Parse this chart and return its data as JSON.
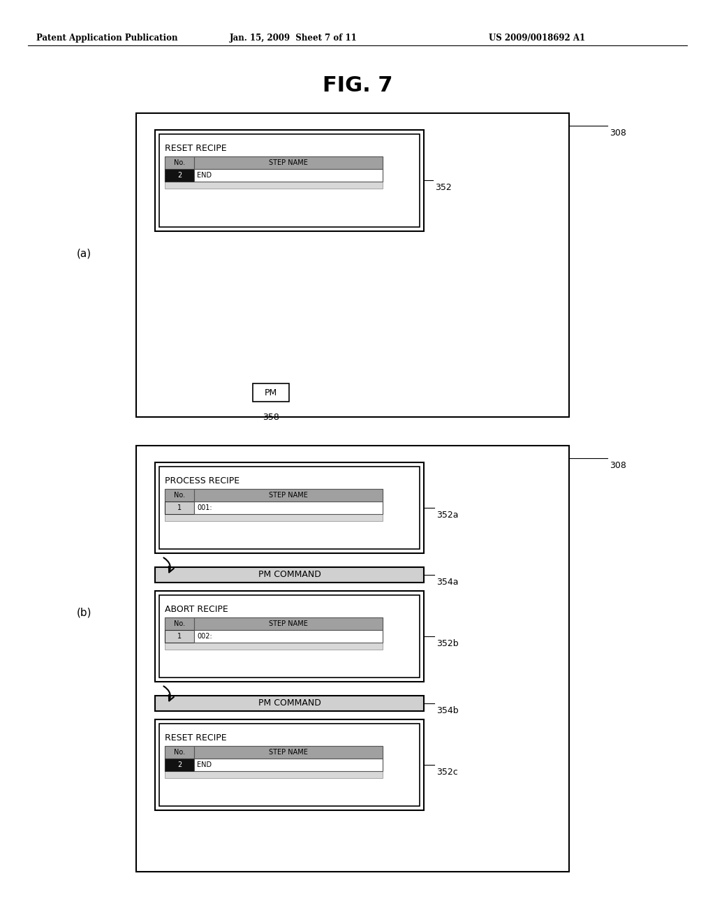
{
  "header_left": "Patent Application Publication",
  "header_mid": "Jan. 15, 2009  Sheet 7 of 11",
  "header_right": "US 2009/0018692 A1",
  "fig_title": "FIG. 7",
  "label_a": "(a)",
  "label_b": "(b)",
  "ref_308_a": "308",
  "ref_352": "352",
  "ref_358": "358",
  "ref_308_b": "308",
  "ref_352a": "352a",
  "ref_354a": "354a",
  "ref_352b": "352b",
  "ref_354b": "354b",
  "ref_352c": "352c",
  "pm_label": "PM",
  "pm_command_a": "PM COMMAND",
  "pm_command_b": "PM COMMAND",
  "recipe_reset_a": "RESET RECIPE",
  "recipe_process": "PROCESS RECIPE",
  "recipe_abort": "ABORT RECIPE",
  "recipe_reset_b": "RESET RECIPE",
  "no_label": "No.",
  "step_name_label": "STEP NAME",
  "row_a_no": "2",
  "row_a_step": "END",
  "row_b_no": "1",
  "row_b_step": "001:",
  "row_c_no": "1",
  "row_c_step": "002:",
  "row_d_no": "2",
  "row_d_step": "END"
}
